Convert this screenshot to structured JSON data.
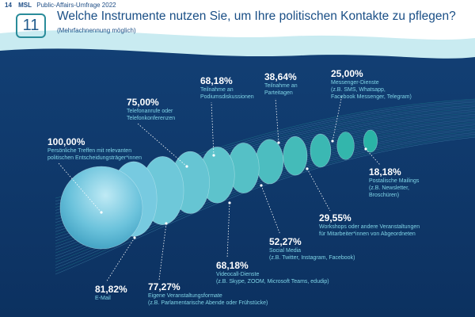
{
  "header": {
    "page_number": "14",
    "brand": "MSL",
    "survey": "Public-Affairs-Umfrage 2022"
  },
  "question": {
    "number": "11",
    "title": "Welche Instrumente nutzen Sie, um Ihre politischen Kontakte zu pflegen?",
    "subtitle": "(Mehrfachnennung möglich)"
  },
  "colors": {
    "background_top": "#ffffff",
    "background_band": "#c9ebf1",
    "ocean": "#0f3a6e",
    "accent_teal": "#2ab3a6",
    "accent_blue": "#7fcde6"
  },
  "chart_data": {
    "type": "bar",
    "categories": [
      "Persönliche Treffen mit relevanten politischen Entscheidungsträger*innen",
      "E-Mail",
      "Eigene Veranstaltungsformate (z.B. Parlamentarische Abende oder Frühstücke)",
      "Telefonanrufe oder Telefonkonferenzen",
      "Teilnahme an Podiumsdiskussionen",
      "Videocall-Dienste (z.B. Skype, ZOOM, Microsoft Teams, edudip)",
      "Social Media (z.B. Twitter, Instagram, Facebook)",
      "Teilnahme an Parteitagen",
      "Workshops oder andere Veranstaltungen für Mitarbeiter*innen von Abgeordneten",
      "Messenger-Dienste (z.B. SMS, Whatsapp, Facebook Messenger, Telegram)",
      "Postalische Mailings (z.B. Newsletter, Broschüren)"
    ],
    "values": [
      100.0,
      81.82,
      77.27,
      75.0,
      68.18,
      68.18,
      52.27,
      38.64,
      29.55,
      25.0,
      18.18
    ],
    "value_labels": [
      "100,00%",
      "81,82%",
      "77,27%",
      "75,00%",
      "68,18%",
      "68,18%",
      "52,27%",
      "38,64%",
      "29,55%",
      "25,00%",
      "18,18%"
    ],
    "labels": [
      {
        "pct": "100,00%",
        "desc": "Persönliche Treffen mit relevanten\npolitischen Entscheidungsträger*innen"
      },
      {
        "pct": "81,82%",
        "desc": "E-Mail"
      },
      {
        "pct": "77,27%",
        "desc": "Eigene Veranstaltungsformate\n(z.B. Parlamentarische Abende oder Frühstücke)"
      },
      {
        "pct": "75,00%",
        "desc": "Telefonanrufe oder\nTelefonkonferenzen"
      },
      {
        "pct": "68,18%",
        "desc": "Teilnahme an\nPodiumsdiskussionen"
      },
      {
        "pct": "68,18%",
        "desc": "Videocall-Dienste\n(z.B. Skype, ZOOM, Microsoft Teams, edudip)"
      },
      {
        "pct": "52,27%",
        "desc": "Social Media\n(z.B. Twitter, Instagram, Facebook)"
      },
      {
        "pct": "38,64%",
        "desc": "Teilnahme an\nParteitagen"
      },
      {
        "pct": "29,55%",
        "desc": "Workshops oder andere Veranstaltungen\nfür Mitarbeiter*innen von Abgeordneten"
      },
      {
        "pct": "25,00%",
        "desc": "Messenger-Dienste\n(z.B. SMS, Whatsapp,\nFacebook Messenger, Telegram)"
      },
      {
        "pct": "18,18%",
        "desc": "Postalische Mailings\n(z.B. Newsletter,\nBroschüren)"
      }
    ],
    "ylim": [
      0,
      100
    ],
    "legend": "none",
    "grid": false
  }
}
